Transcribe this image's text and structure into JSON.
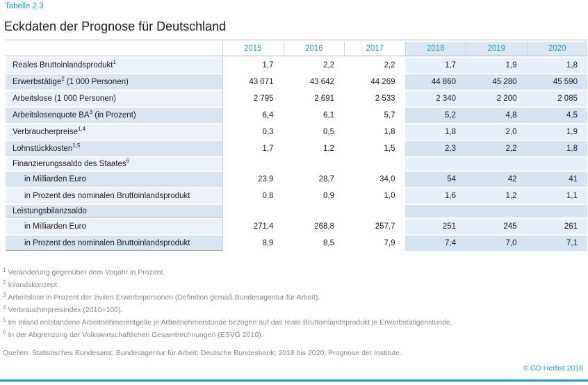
{
  "page": {
    "table_label": "Tabelle 2.3",
    "title": "Eckdaten der Prognose für Deutschland",
    "copyright": "© GD Herbst 2018",
    "accent_color": "#1a9cd8"
  },
  "table": {
    "years": [
      "2015",
      "2016",
      "2017",
      "2018",
      "2019",
      "2020"
    ],
    "forecast_years": [
      "2018",
      "2019",
      "2020"
    ],
    "rows": [
      {
        "parts": [
          {
            "t": "Reales Bruttoinlandsprodukt"
          },
          {
            "sup": "1"
          }
        ],
        "values": [
          "1,7",
          "2,2",
          "2,2",
          "1,7",
          "1,9",
          "1,8"
        ]
      },
      {
        "parts": [
          {
            "t": "Erwerbstätige"
          },
          {
            "sup": "2"
          },
          {
            "t": " (1 000 Personen)"
          }
        ],
        "values": [
          "43 071",
          "43 642",
          "44 269",
          "44 860",
          "45 280",
          "45 590"
        ]
      },
      {
        "parts": [
          {
            "t": "Arbeitslose (1 000 Personen)"
          }
        ],
        "values": [
          "2 795",
          "2 691",
          "2 533",
          "2 340",
          "2 200",
          "2 085"
        ]
      },
      {
        "parts": [
          {
            "t": "Arbeitslosenquote BA"
          },
          {
            "sup": "3"
          },
          {
            "t": " (in Prozent)"
          }
        ],
        "values": [
          "6,4",
          "6,1",
          "5,7",
          "5,2",
          "4,8",
          "4,5"
        ]
      },
      {
        "parts": [
          {
            "t": "Verbraucherpreise"
          },
          {
            "sup": "1,4"
          }
        ],
        "values": [
          "0,3",
          "0,5",
          "1,8",
          "1,8",
          "2,0",
          "1,9"
        ]
      },
      {
        "parts": [
          {
            "t": "Lohnstückkosten"
          },
          {
            "sup": "1,5"
          }
        ],
        "values": [
          "1,7",
          "1,2",
          "1,5",
          "2,3",
          "2,2",
          "1,8"
        ]
      },
      {
        "parts": [
          {
            "t": "Finanzierungssaldo des Staates"
          },
          {
            "sup": "6"
          }
        ],
        "values": [
          "",
          "",
          "",
          "",
          "",
          ""
        ],
        "group": true
      },
      {
        "parts": [
          {
            "t": "in Milliarden Euro"
          }
        ],
        "values": [
          "23,9",
          "28,7",
          "34,0",
          "54",
          "42",
          "41"
        ],
        "indent": true
      },
      {
        "parts": [
          {
            "t": "in Prozent des nominalen Bruttoinlandsprodukt"
          }
        ],
        "values": [
          "0,8",
          "0,9",
          "1,0",
          "1,6",
          "1,2",
          "1,1"
        ],
        "indent": true
      },
      {
        "parts": [
          {
            "t": "Leistungsbilanzsaldo"
          }
        ],
        "values": [
          "",
          "",
          "",
          "",
          "",
          ""
        ],
        "group": true,
        "divider": true
      },
      {
        "parts": [
          {
            "t": "in Milliarden Euro"
          }
        ],
        "values": [
          "271,4",
          "268,8",
          "257,7",
          "251",
          "245",
          "261"
        ],
        "indent": true
      },
      {
        "parts": [
          {
            "t": "in Prozent des nominalen Bruttoinlandsprodukt"
          }
        ],
        "values": [
          "8,9",
          "8,5",
          "7,9",
          "7,4",
          "7,0",
          "7,1"
        ],
        "indent": true,
        "divider": true
      }
    ]
  },
  "footnotes": [
    {
      "sup": "1",
      "text": "Veränderung gegenüber dem Vorjahr in Prozent."
    },
    {
      "sup": "2",
      "text": "Inlandskonzept."
    },
    {
      "sup": "3",
      "text": "Arbeitslose in Prozent der zivilen Erwerbspersonen (Definition gemäß Bundesagentur für Arbeit)."
    },
    {
      "sup": "4",
      "text": "Verbraucherpreisindex (2010=100)."
    },
    {
      "sup": "5",
      "text": "Im Inland entstandene Arbeitnehmerentgelte je Arbeitnehmerstunde bezogen auf das reale Bruttoinlandsprodukt je Erwerbstätigenstunde."
    },
    {
      "sup": "6",
      "text": "In der Abgrenzung der Volkswirtschaftlichen Gesamtrechnungen (ESVG 2010)."
    }
  ],
  "sources": "Quellen: Statistisches Bundesamt; Bundesagentur für Arbeit; Deutsche Bundesbank; 2018 bis 2020: Prognose der Institute."
}
